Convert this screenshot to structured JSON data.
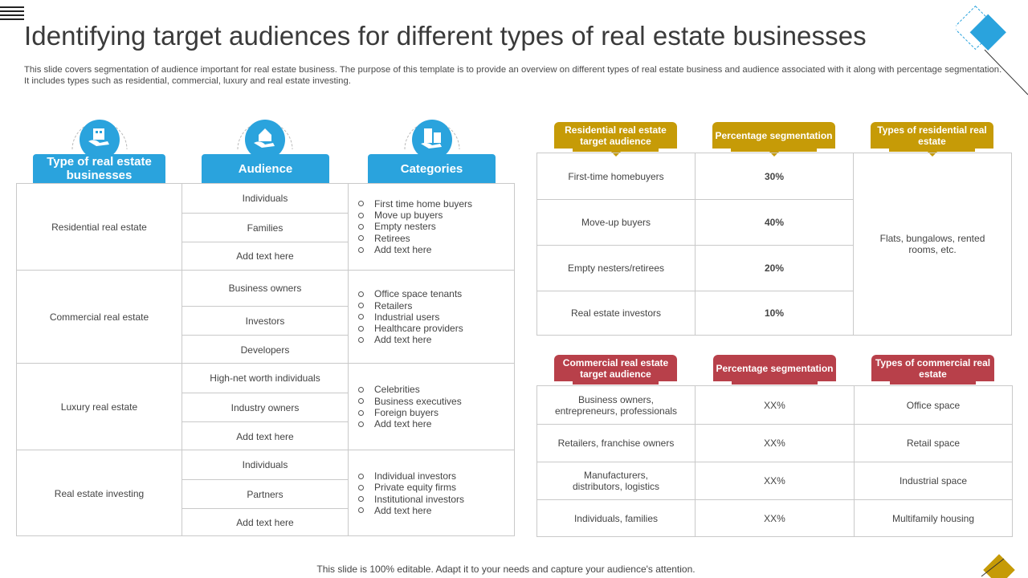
{
  "title": "Identifying target audiences for different types of real estate businesses",
  "description": "This slide covers segmentation of audience important for real estate business. The purpose of this template is to provide an overview on different types of real estate business and audience associated with it along with percentage segmentation. It includes types such as residential, commercial, luxury and real estate investing.",
  "colors": {
    "blue": "#2aa3dd",
    "gold": "#c69b07",
    "red": "#b8404a"
  },
  "left_table": {
    "headers": [
      "Type of real estate businesses",
      "Audience",
      "Categories"
    ],
    "rows": [
      {
        "type": "Residential real estate",
        "audience": [
          "Individuals",
          "Families",
          "Add text here"
        ],
        "categories": [
          "First time home buyers",
          "Move up buyers",
          "Empty nesters",
          "Retirees",
          "Add text here"
        ]
      },
      {
        "type": "Commercial real estate",
        "audience": [
          "Business owners",
          "Investors",
          "Developers"
        ],
        "categories": [
          "Office space tenants",
          "Retailers",
          "Industrial users",
          "Healthcare providers",
          "Add text here"
        ]
      },
      {
        "type": "Luxury real estate",
        "audience": [
          "High-net worth individuals",
          "Industry owners",
          "Add text here"
        ],
        "categories": [
          "Celebrities",
          "Business executives",
          "Foreign buyers",
          "Add text here"
        ]
      },
      {
        "type": "Real estate investing",
        "audience": [
          "Individuals",
          "Partners",
          "Add text here"
        ],
        "categories": [
          "Individual investors",
          "Private equity firms",
          "Institutional investors",
          "Add text here"
        ]
      }
    ]
  },
  "residential_table": {
    "headers": [
      "Residential real estate target audience",
      "Percentage segmentation",
      "Types of residential real estate"
    ],
    "rows": [
      {
        "audience": "First-time homebuyers",
        "percent": "30%"
      },
      {
        "audience": "Move-up buyers",
        "percent": "40%"
      },
      {
        "audience": "Empty nesters/retirees",
        "percent": "20%"
      },
      {
        "audience": "Real estate investors",
        "percent": "10%"
      }
    ],
    "types": "Flats, bungalows, rented rooms, etc."
  },
  "commercial_table": {
    "headers": [
      "Commercial real estate target audience",
      "Percentage segmentation",
      "Types of commercial real estate"
    ],
    "rows": [
      {
        "audience": "Business owners, entrepreneurs, professionals",
        "percent": "XX%",
        "type": "Office space"
      },
      {
        "audience": "Retailers, franchise owners",
        "percent": "XX%",
        "type": "Retail space"
      },
      {
        "audience": "Manufacturers, distributors, logistics",
        "percent": "XX%",
        "type": "Industrial space"
      },
      {
        "audience": "Individuals, families",
        "percent": "XX%",
        "type": "Multifamily housing"
      }
    ]
  },
  "footer": "This slide is 100% editable. Adapt it to your needs and capture your audience's attention."
}
